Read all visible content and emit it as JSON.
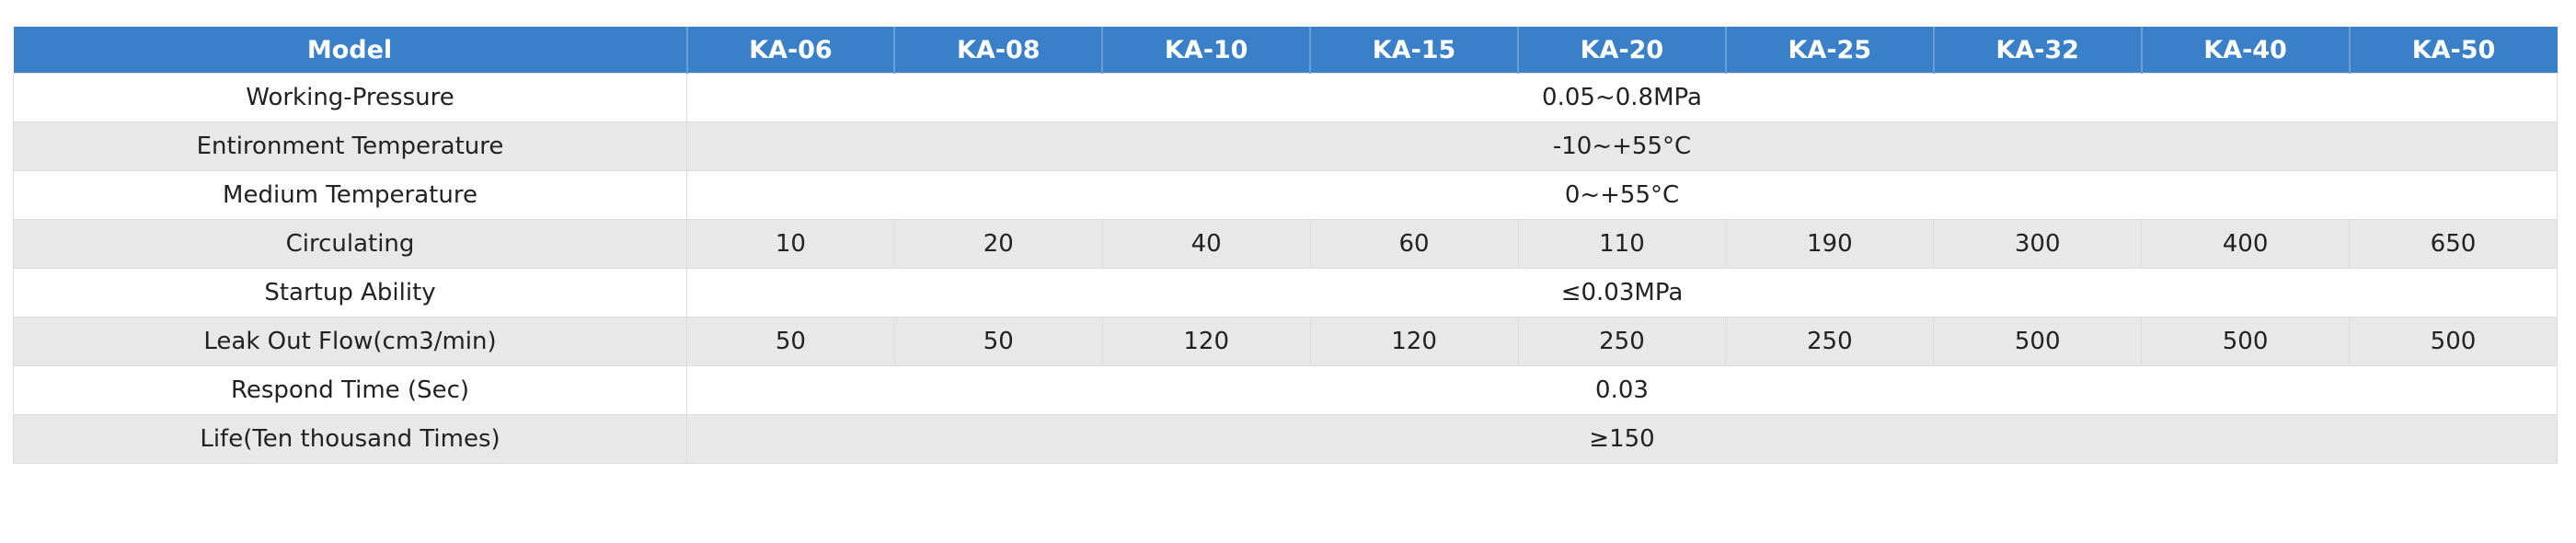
{
  "table": {
    "header": [
      "Model",
      "KA-06",
      "KA-08",
      "KA-10",
      "KA-15",
      "KA-20",
      "KA-25",
      "KA-32",
      "KA-40",
      "KA-50"
    ],
    "rows": [
      {
        "label": "Working-Pressure",
        "value": "0.05~0.8MPa"
      },
      {
        "label": "Entironment Temperature",
        "value": "-10~+55°C"
      },
      {
        "label": "Medium Temperature",
        "value": "0~+55°C"
      },
      {
        "label": "Circulating",
        "values": [
          "10",
          "20",
          "40",
          "60",
          "110",
          "190",
          "300",
          "400",
          "650"
        ]
      },
      {
        "label": "Startup Ability",
        "value": "≤0.03MPa"
      },
      {
        "label": "Leak Out Flow(cm3/min)",
        "values": [
          "50",
          "50",
          "120",
          "120",
          "250",
          "250",
          "500",
          "500",
          "500"
        ]
      },
      {
        "label": "Respond Time (Sec)",
        "value": "0.03"
      },
      {
        "label": "Life(Ten thousand Times)",
        "value": "≥150"
      }
    ]
  }
}
